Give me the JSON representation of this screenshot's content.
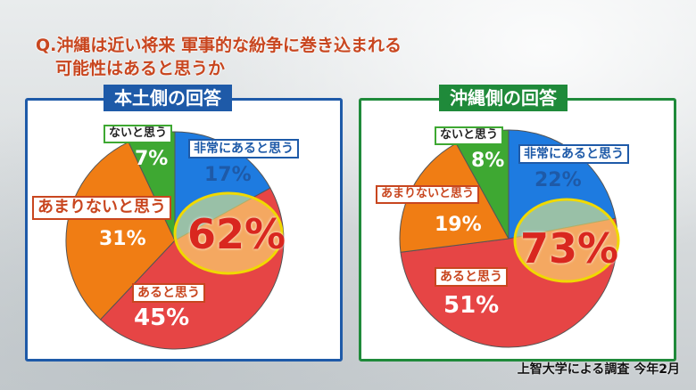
{
  "title_line1": "Q.沖縄は近い将来 軍事的な紛争に巻き込まれる",
  "title_line2": "可能性はあると思うか",
  "source": "上智大学による調査 今年2月",
  "chart_data": [
    {
      "type": "pie",
      "title": "本土側の回答",
      "slices": [
        {
          "label": "非常にあると思う",
          "value": 17,
          "display": "17%",
          "color": "#1e7be0"
        },
        {
          "label": "あると思う",
          "value": 45,
          "display": "45%",
          "color": "#e64545"
        },
        {
          "label": "あまりないと思う",
          "value": 31,
          "display": "31%",
          "color": "#f07d14"
        },
        {
          "label": "ないと思う",
          "value": 7,
          "display": "7%",
          "color": "#3ea832"
        }
      ],
      "highlight": {
        "value": 62,
        "display": "62%"
      }
    },
    {
      "type": "pie",
      "title": "沖縄側の回答",
      "slices": [
        {
          "label": "非常にあると思う",
          "value": 22,
          "display": "22%",
          "color": "#1e7be0"
        },
        {
          "label": "あると思う",
          "value": 51,
          "display": "51%",
          "color": "#e64545"
        },
        {
          "label": "あまりないと思う",
          "value": 19,
          "display": "19%",
          "color": "#f07d14"
        },
        {
          "label": "ないと思う",
          "value": 8,
          "display": "8%",
          "color": "#3ea832"
        }
      ],
      "highlight": {
        "value": 73,
        "display": "73%"
      }
    }
  ]
}
